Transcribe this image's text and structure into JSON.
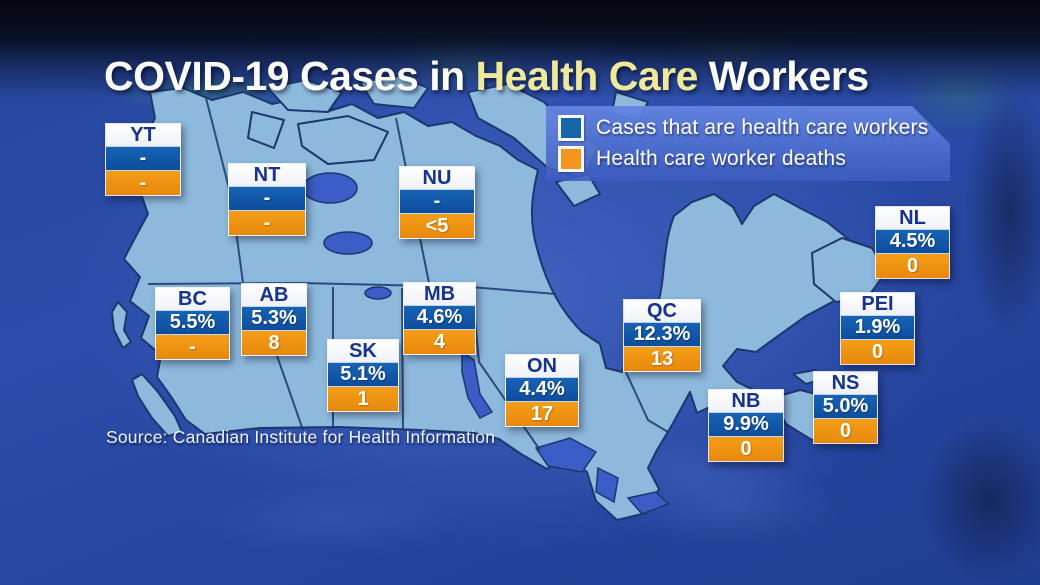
{
  "title": {
    "prefix": "COVID-19 Cases in ",
    "highlight": "Health Care",
    "suffix": " Workers"
  },
  "legend": {
    "items": [
      {
        "label": "Cases that are health care workers",
        "swatch": "#1566a9"
      },
      {
        "label": "Health care worker deaths",
        "swatch": "#f2971c"
      }
    ]
  },
  "source": "Source: Canadian Institute for Health Information",
  "provinces": [
    {
      "code": "YT",
      "cases": "-",
      "deaths": "-"
    },
    {
      "code": "NT",
      "cases": "-",
      "deaths": "-"
    },
    {
      "code": "NU",
      "cases": "-",
      "deaths": "<5"
    },
    {
      "code": "BC",
      "cases": "5.5%",
      "deaths": "-"
    },
    {
      "code": "AB",
      "cases": "5.3%",
      "deaths": "8"
    },
    {
      "code": "SK",
      "cases": "5.1%",
      "deaths": "1"
    },
    {
      "code": "MB",
      "cases": "4.6%",
      "deaths": "4"
    },
    {
      "code": "ON",
      "cases": "4.4%",
      "deaths": "17"
    },
    {
      "code": "QC",
      "cases": "12.3%",
      "deaths": "13"
    },
    {
      "code": "NB",
      "cases": "9.9%",
      "deaths": "0"
    },
    {
      "code": "NS",
      "cases": "5.0%",
      "deaths": "0"
    },
    {
      "code": "PEI",
      "cases": "1.9%",
      "deaths": "0"
    },
    {
      "code": "NL",
      "cases": "4.5%",
      "deaths": "0"
    }
  ],
  "colors": {
    "cases_blue": "#1360b0",
    "deaths_orange": "#ef9313",
    "header_navy": "#16338f",
    "land": "#8db9dc",
    "water": "#3a5ec6",
    "background": "#27479e"
  },
  "chart_data": {
    "type": "table",
    "title": "COVID-19 Cases in Health Care Workers",
    "columns": [
      "Province",
      "Cases that are health care workers",
      "Health care worker deaths"
    ],
    "rows": [
      [
        "YT",
        "-",
        "-"
      ],
      [
        "NT",
        "-",
        "-"
      ],
      [
        "NU",
        "-",
        "<5"
      ],
      [
        "BC",
        "5.5%",
        "-"
      ],
      [
        "AB",
        "5.3%",
        "8"
      ],
      [
        "SK",
        "5.1%",
        "1"
      ],
      [
        "MB",
        "4.6%",
        "4"
      ],
      [
        "ON",
        "4.4%",
        "17"
      ],
      [
        "QC",
        "12.3%",
        "13"
      ],
      [
        "NB",
        "9.9%",
        "0"
      ],
      [
        "NS",
        "5.0%",
        "0"
      ],
      [
        "PEI",
        "1.9%",
        "0"
      ],
      [
        "NL",
        "4.5%",
        "0"
      ]
    ],
    "legend": [
      "Cases that are health care workers",
      "Health care worker deaths"
    ],
    "legend_position": "top-right",
    "source": "Source: Canadian Institute for Health Information"
  }
}
